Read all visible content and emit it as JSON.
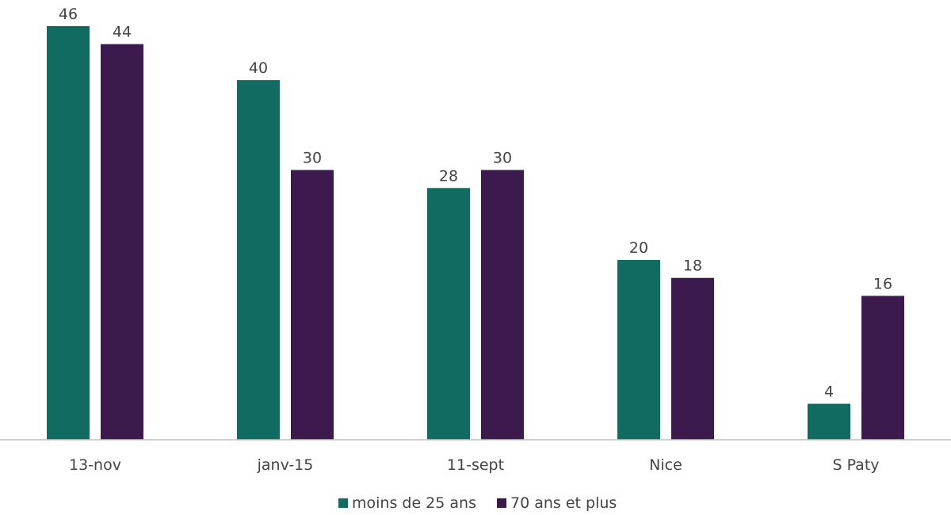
{
  "chart_data": {
    "type": "bar",
    "title": "",
    "xlabel": "",
    "ylabel": "",
    "categories": [
      "13-nov",
      "janv-15",
      "11-sept",
      "Nice",
      "S Paty"
    ],
    "series": [
      {
        "name": "moins de 25 ans",
        "color": "#116b60",
        "values": [
          46,
          40,
          28,
          20,
          4
        ]
      },
      {
        "name": "70 ans et plus",
        "color": "#3c1a4e",
        "values": [
          44,
          30,
          30,
          18,
          16
        ]
      }
    ],
    "ylim": [
      0,
      46
    ],
    "grid": false,
    "legend": "bottom-center"
  }
}
